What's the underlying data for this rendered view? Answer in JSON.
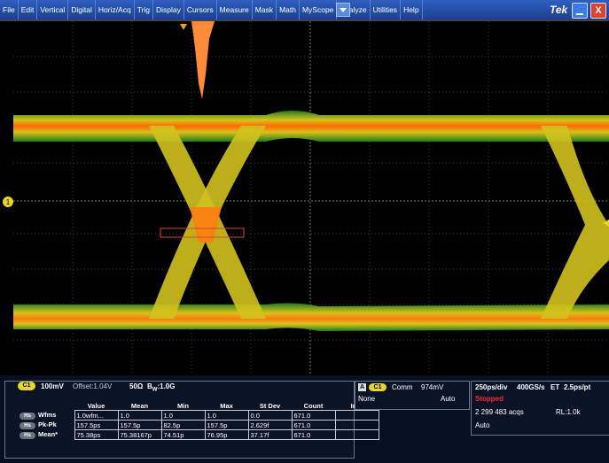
{
  "menu": [
    "File",
    "Edit",
    "Vertical",
    "Digital",
    "Horiz/Acq",
    "Trig",
    "Display",
    "Cursors",
    "Measure",
    "Mask",
    "Math",
    "MyScope",
    "Analyze",
    "Utilities",
    "Help"
  ],
  "brand": "Tek",
  "window_controls": {
    "close_label": "X"
  },
  "scope": {
    "ch1_marker": "1"
  },
  "channel": {
    "badge": "C1",
    "scale": "100mV",
    "offset": "Offset:1.04V",
    "termination": "50Ω",
    "bw_prefix": "B",
    "bw_sub": "W",
    "bw_value": ":1.0G"
  },
  "measurements": {
    "headers": [
      "Value",
      "Mean",
      "Min",
      "Max",
      "St Dev",
      "Count",
      "Info"
    ],
    "rows": [
      {
        "source": "Hs",
        "name": "Wfms",
        "values": [
          "1.0wfm...",
          "1.0",
          "1.0",
          "1.0",
          "0.0",
          "671.0",
          ""
        ]
      },
      {
        "source": "Hs",
        "name": "Pk-Pk",
        "values": [
          "157.5ps",
          "157.5p",
          "82.5p",
          "157.5p",
          "2.629f",
          "671.0",
          ""
        ]
      },
      {
        "source": "Hs",
        "name": "Mean*",
        "values": [
          "75.38ps",
          "75.38167p",
          "74.51p",
          "76.95p",
          "37.17f",
          "671.0",
          ""
        ]
      }
    ]
  },
  "trigger": {
    "mode_badge": "A",
    "channel_badge": "C1",
    "coupling": "Comm",
    "level": "974mV",
    "slope": "None",
    "sweep": "Auto"
  },
  "acquisition": {
    "timebase": "250ps/div",
    "sample_rate": "400GS/s",
    "mode": "ET",
    "resolution": "2.5ps/pt",
    "state": "Stopped",
    "acqs": "2 299 483 acqs",
    "rl": "RL:1.0k",
    "trigger_mode": "Auto"
  },
  "colors": {
    "menubar": "#2051b8",
    "stopped": "#ff2a2a",
    "channel1": "#e8d52a"
  }
}
